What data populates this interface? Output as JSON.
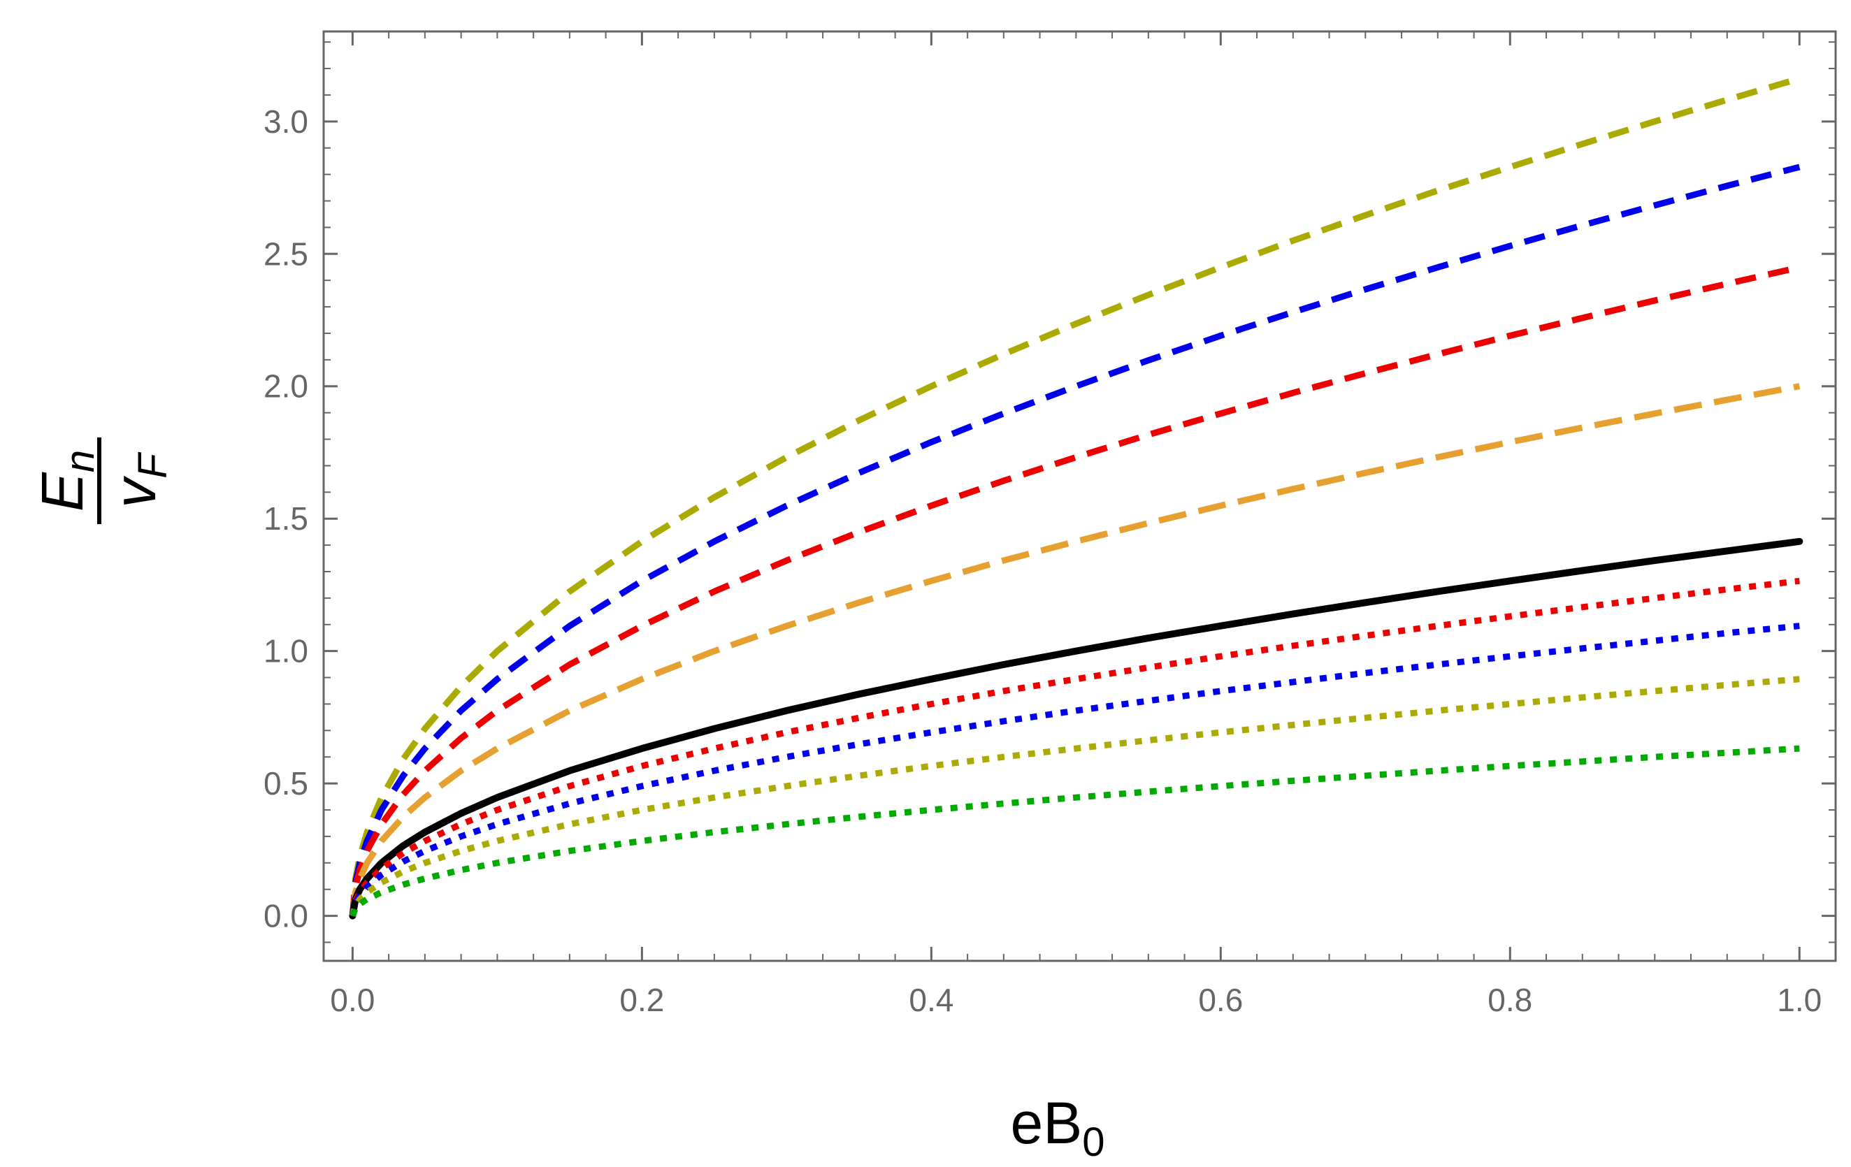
{
  "chart_data": {
    "type": "line",
    "xlabel": {
      "base": "eB",
      "sub": "0"
    },
    "ylabel": {
      "num_base": "E",
      "num_sub": "n",
      "den_base": "v",
      "den_sub": "F"
    },
    "xlim": [
      -0.02,
      1.025
    ],
    "ylim": [
      -0.17,
      3.34
    ],
    "xticks": [
      0.0,
      0.2,
      0.4,
      0.6,
      0.8,
      1.0
    ],
    "xtick_labels": [
      "0.0",
      "0.2",
      "0.4",
      "0.6",
      "0.8",
      "1.0"
    ],
    "yticks": [
      0.0,
      0.5,
      1.0,
      1.5,
      2.0,
      2.5,
      3.0
    ],
    "ytick_labels": [
      "0.0",
      "0.5",
      "1.0",
      "1.5",
      "2.0",
      "2.5",
      "3.0"
    ],
    "grid": false,
    "x": [
      0,
      0.002,
      0.005,
      0.01,
      0.02,
      0.035,
      0.05,
      0.075,
      0.1,
      0.15,
      0.2,
      0.25,
      0.3,
      0.35,
      0.4,
      0.45,
      0.5,
      0.55,
      0.6,
      0.65,
      0.7,
      0.75,
      0.8,
      0.85,
      0.9,
      0.95,
      1.0
    ],
    "series": [
      {
        "color": "#aaaa00",
        "style": "dashed",
        "values": [
          0,
          0.141,
          0.224,
          0.316,
          0.447,
          0.592,
          0.707,
          0.866,
          1.0,
          1.225,
          1.414,
          1.581,
          1.732,
          1.871,
          2.0,
          2.121,
          2.236,
          2.345,
          2.449,
          2.55,
          2.646,
          2.739,
          2.828,
          2.915,
          3.0,
          3.082,
          3.162
        ]
      },
      {
        "color": "#0000ee",
        "style": "dashed",
        "values": [
          0,
          0.126,
          0.2,
          0.283,
          0.4,
          0.529,
          0.632,
          0.775,
          0.894,
          1.095,
          1.265,
          1.414,
          1.549,
          1.673,
          1.789,
          1.897,
          2.0,
          2.098,
          2.191,
          2.28,
          2.366,
          2.449,
          2.53,
          2.608,
          2.683,
          2.757,
          2.828
        ]
      },
      {
        "color": "#ee0000",
        "style": "dashed",
        "values": [
          0,
          0.11,
          0.173,
          0.245,
          0.346,
          0.458,
          0.548,
          0.671,
          0.775,
          0.949,
          1.095,
          1.225,
          1.342,
          1.449,
          1.549,
          1.643,
          1.732,
          1.817,
          1.897,
          1.975,
          2.049,
          2.121,
          2.191,
          2.258,
          2.324,
          2.387,
          2.449
        ]
      },
      {
        "color": "#e5a030",
        "style": "longdash",
        "values": [
          0,
          0.089,
          0.141,
          0.2,
          0.283,
          0.374,
          0.447,
          0.548,
          0.632,
          0.775,
          0.894,
          1.0,
          1.095,
          1.183,
          1.265,
          1.342,
          1.414,
          1.483,
          1.549,
          1.612,
          1.673,
          1.732,
          1.789,
          1.844,
          1.897,
          1.949,
          2.0
        ]
      },
      {
        "color": "#000000",
        "style": "solid",
        "values": [
          0,
          0.063,
          0.1,
          0.141,
          0.2,
          0.265,
          0.316,
          0.387,
          0.447,
          0.548,
          0.632,
          0.707,
          0.775,
          0.837,
          0.894,
          0.949,
          1.0,
          1.049,
          1.095,
          1.14,
          1.183,
          1.225,
          1.265,
          1.304,
          1.342,
          1.378,
          1.414
        ]
      },
      {
        "color": "#ee0000",
        "style": "dotted",
        "values": [
          0,
          0.057,
          0.089,
          0.126,
          0.179,
          0.237,
          0.283,
          0.346,
          0.4,
          0.49,
          0.566,
          0.632,
          0.693,
          0.748,
          0.8,
          0.849,
          0.894,
          0.938,
          0.98,
          1.02,
          1.058,
          1.095,
          1.131,
          1.166,
          1.2,
          1.233,
          1.265
        ]
      },
      {
        "color": "#0000ee",
        "style": "dotted",
        "values": [
          0,
          0.049,
          0.077,
          0.11,
          0.155,
          0.205,
          0.245,
          0.3,
          0.346,
          0.424,
          0.49,
          0.548,
          0.6,
          0.648,
          0.693,
          0.735,
          0.775,
          0.812,
          0.849,
          0.883,
          0.917,
          0.949,
          0.98,
          1.01,
          1.039,
          1.068,
          1.095
        ]
      },
      {
        "color": "#aaaa00",
        "style": "dotted",
        "values": [
          0,
          0.04,
          0.063,
          0.089,
          0.126,
          0.167,
          0.2,
          0.245,
          0.283,
          0.346,
          0.4,
          0.447,
          0.49,
          0.529,
          0.566,
          0.6,
          0.632,
          0.663,
          0.693,
          0.721,
          0.748,
          0.775,
          0.8,
          0.825,
          0.849,
          0.872,
          0.894
        ]
      },
      {
        "color": "#00aa00",
        "style": "dotted",
        "values": [
          0,
          0.028,
          0.045,
          0.063,
          0.089,
          0.118,
          0.141,
          0.173,
          0.2,
          0.245,
          0.283,
          0.316,
          0.346,
          0.374,
          0.4,
          0.424,
          0.447,
          0.469,
          0.49,
          0.51,
          0.529,
          0.548,
          0.566,
          0.583,
          0.6,
          0.616,
          0.632
        ]
      }
    ]
  }
}
